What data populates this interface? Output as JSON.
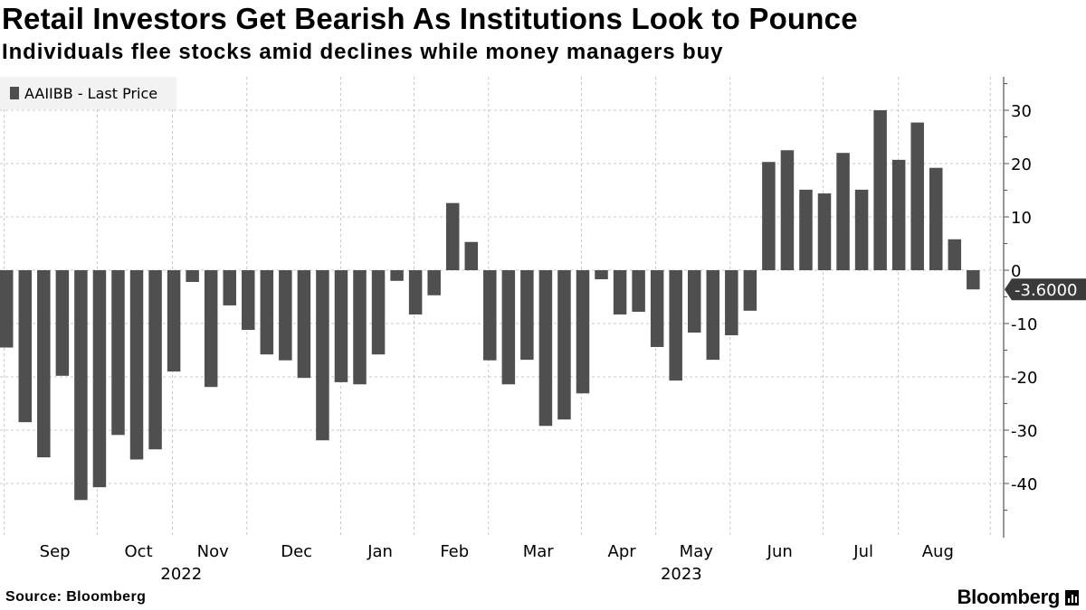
{
  "header": {
    "title": "Retail Investors Get Bearish As Institutions Look to Pounce",
    "subtitle": "Individuals flee stocks amid declines while money managers buy"
  },
  "footer": {
    "source": "Source: Bloomberg",
    "logo": "Bloomberg"
  },
  "colors": {
    "bar": "#4f4f4f",
    "grid": "#c8c8c8",
    "axis": "#555555"
  },
  "chart_data": {
    "type": "bar",
    "title": "Retail Investors Get Bearish As Institutions Look to Pounce",
    "legend": {
      "label": "AAIIBB - Last Price",
      "position": "top-left"
    },
    "xlabel": "",
    "ylabel": "",
    "ylim": [
      -50,
      36
    ],
    "yticks": [
      30,
      20,
      10,
      0,
      -10,
      -20,
      -30,
      -40
    ],
    "grid": true,
    "months": [
      "Sep",
      "Oct",
      "Nov",
      "Dec",
      "Jan",
      "Feb",
      "Mar",
      "Apr",
      "May",
      "Jun",
      "Jul",
      "Aug"
    ],
    "month_bar_centers": [
      2.6,
      7.1,
      11.1,
      15.6,
      20.1,
      24.1,
      28.6,
      33.1,
      37.1,
      41.6,
      46.1,
      50.1
    ],
    "years": [
      {
        "label": "2022",
        "at_bar": 9.4
      },
      {
        "label": "2023",
        "at_bar": 36.3
      }
    ],
    "last_value_label": "-3.6000",
    "values": [
      -14.5,
      -28.5,
      -35.1,
      -19.8,
      -43.1,
      -40.7,
      -30.9,
      -35.5,
      -33.6,
      -19.0,
      -2.2,
      -21.9,
      -6.6,
      -11.2,
      -15.8,
      -16.9,
      -20.2,
      -31.9,
      -21.0,
      -21.4,
      -15.8,
      -2.0,
      -8.3,
      -4.7,
      12.6,
      5.3,
      -16.9,
      -21.4,
      -16.8,
      -29.2,
      -28.0,
      -23.1,
      -1.7,
      -8.3,
      -7.8,
      -14.4,
      -20.7,
      -11.7,
      -16.8,
      -12.2,
      -7.6,
      20.3,
      22.5,
      15.1,
      14.4,
      22.0,
      15.1,
      30.0,
      20.7,
      27.7,
      19.2,
      5.8,
      -3.6
    ]
  }
}
